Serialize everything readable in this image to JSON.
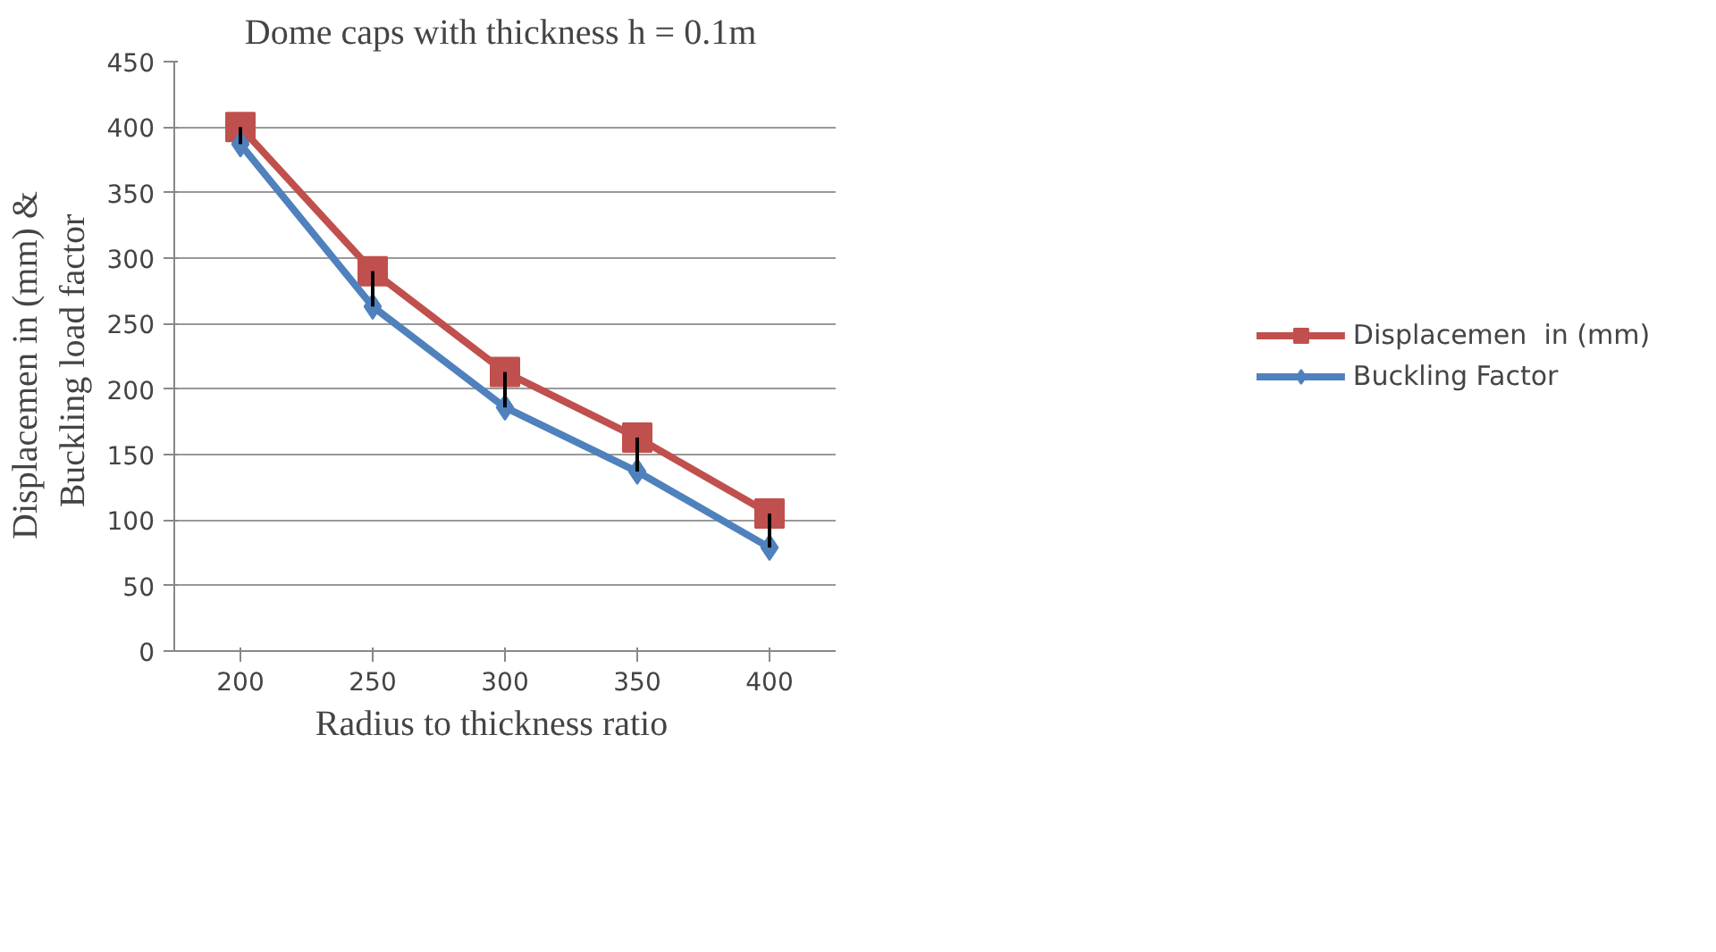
{
  "chart_data": {
    "type": "line",
    "title": "Dome caps with thickness  h = 0.1m",
    "xlabel": "Radius  to  thickness  ratio",
    "ylabel": "Displacemen  in (mm)  &\nBuckling  load factor",
    "categories": [
      "200",
      "250",
      "300",
      "350",
      "400"
    ],
    "series": [
      {
        "name": "Displacemen  in (mm)",
        "color": "#c0504d",
        "marker": "square",
        "values": [
          400,
          290,
          213,
          163,
          105
        ],
        "errors": [
          [
            387,
            400
          ],
          [
            263,
            290
          ],
          [
            186,
            213
          ],
          [
            137,
            163
          ],
          [
            79,
            105
          ]
        ]
      },
      {
        "name": "Buckling Factor",
        "color": "#4f81bd",
        "marker": "diamond",
        "values": [
          387,
          263,
          186,
          137,
          79
        ]
      }
    ],
    "ylim": [
      0,
      450
    ],
    "yticks": [
      0,
      50,
      100,
      150,
      200,
      250,
      300,
      350,
      400,
      450
    ],
    "grid": "y",
    "legend": "right",
    "line_style": "solid"
  }
}
